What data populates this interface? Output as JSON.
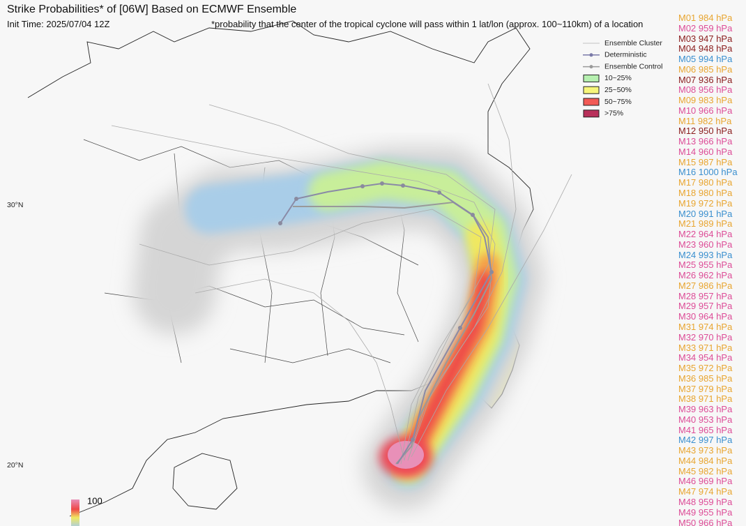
{
  "header": {
    "title": "Strike Probabilities* of [06W] Based on ECMWF Ensemble",
    "init_time": "Init Time: 2025/07/04 12Z",
    "footnote": "*probability that the center of the tropical cyclone will pass within 1 lat/lon (approx. 100~110km) of a location"
  },
  "legend": {
    "items": [
      {
        "label": "Ensemble Cluster",
        "kind": "line",
        "color": "#c0c0c0"
      },
      {
        "label": "Deterministic",
        "kind": "marker",
        "color": "#7a7aa8"
      },
      {
        "label": "Ensemble Control",
        "kind": "marker",
        "color": "#9a9a9a"
      },
      {
        "label": "10~25%",
        "kind": "box",
        "color": "#b6f0b0"
      },
      {
        "label": "25~50%",
        "kind": "box",
        "color": "#f6f57a"
      },
      {
        "label": ">75%",
        "kind": "box",
        "color": "#b8305a"
      }
    ]
  },
  "legend_extra": {
    "label": "50~75%",
    "color": "#f25a55"
  },
  "latitudes": [
    "30°N",
    "20°N"
  ],
  "colorbar": {
    "label": "100"
  },
  "members": [
    {
      "label": "M01 984 hPa",
      "color": "#e8a530"
    },
    {
      "label": "M02 959 hPa",
      "color": "#dd4c97"
    },
    {
      "label": "M03 947 hPa",
      "color": "#8a1c1c"
    },
    {
      "label": "M04 948 hPa",
      "color": "#8a1c1c"
    },
    {
      "label": "M05 994 hPa",
      "color": "#3a8fcf"
    },
    {
      "label": "M06 985 hPa",
      "color": "#e8a530"
    },
    {
      "label": "M07 936 hPa",
      "color": "#8a1c1c"
    },
    {
      "label": "M08 956 hPa",
      "color": "#dd4c97"
    },
    {
      "label": "M09 983 hPa",
      "color": "#e8a530"
    },
    {
      "label": "M10 966 hPa",
      "color": "#dd4c97"
    },
    {
      "label": "M11 982 hPa",
      "color": "#e8a530"
    },
    {
      "label": "M12 950 hPa",
      "color": "#8a1c1c"
    },
    {
      "label": "M13 966 hPa",
      "color": "#dd4c97"
    },
    {
      "label": "M14 960 hPa",
      "color": "#dd4c97"
    },
    {
      "label": "M15 987 hPa",
      "color": "#e8a530"
    },
    {
      "label": "M16 1000 hPa",
      "color": "#3a8fcf"
    },
    {
      "label": "M17 980 hPa",
      "color": "#e8a530"
    },
    {
      "label": "M18 980 hPa",
      "color": "#e8a530"
    },
    {
      "label": "M19 972 hPa",
      "color": "#e8a530"
    },
    {
      "label": "M20 991 hPa",
      "color": "#3a8fcf"
    },
    {
      "label": "M21 989 hPa",
      "color": "#e8a530"
    },
    {
      "label": "M22 964 hPa",
      "color": "#dd4c97"
    },
    {
      "label": "M23 960 hPa",
      "color": "#dd4c97"
    },
    {
      "label": "M24 993 hPa",
      "color": "#3a8fcf"
    },
    {
      "label": "M25 955 hPa",
      "color": "#dd4c97"
    },
    {
      "label": "M26 962 hPa",
      "color": "#dd4c97"
    },
    {
      "label": "M27 986 hPa",
      "color": "#e8a530"
    },
    {
      "label": "M28 957 hPa",
      "color": "#dd4c97"
    },
    {
      "label": "M29 957 hPa",
      "color": "#dd4c97"
    },
    {
      "label": "M30 964 hPa",
      "color": "#dd4c97"
    },
    {
      "label": "M31 974 hPa",
      "color": "#e8a530"
    },
    {
      "label": "M32 970 hPa",
      "color": "#dd4c97"
    },
    {
      "label": "M33 971 hPa",
      "color": "#e8a530"
    },
    {
      "label": "M34 954 hPa",
      "color": "#dd4c97"
    },
    {
      "label": "M35 972 hPa",
      "color": "#e8a530"
    },
    {
      "label": "M36 985 hPa",
      "color": "#e8a530"
    },
    {
      "label": "M37 979 hPa",
      "color": "#e8a530"
    },
    {
      "label": "M38 971 hPa",
      "color": "#e8a530"
    },
    {
      "label": "M39 963 hPa",
      "color": "#dd4c97"
    },
    {
      "label": "M40 953 hPa",
      "color": "#dd4c97"
    },
    {
      "label": "M41 965 hPa",
      "color": "#dd4c97"
    },
    {
      "label": "M42 997 hPa",
      "color": "#3a8fcf"
    },
    {
      "label": "M43 973 hPa",
      "color": "#e8a530"
    },
    {
      "label": "M44 984 hPa",
      "color": "#e8a530"
    },
    {
      "label": "M45 982 hPa",
      "color": "#e8a530"
    },
    {
      "label": "M46 969 hPa",
      "color": "#dd4c97"
    },
    {
      "label": "M47 974 hPa",
      "color": "#e8a530"
    },
    {
      "label": "M48 959 hPa",
      "color": "#dd4c97"
    },
    {
      "label": "M49 955 hPa",
      "color": "#dd4c97"
    },
    {
      "label": "M50 966 hPa",
      "color": "#dd4c97"
    }
  ]
}
